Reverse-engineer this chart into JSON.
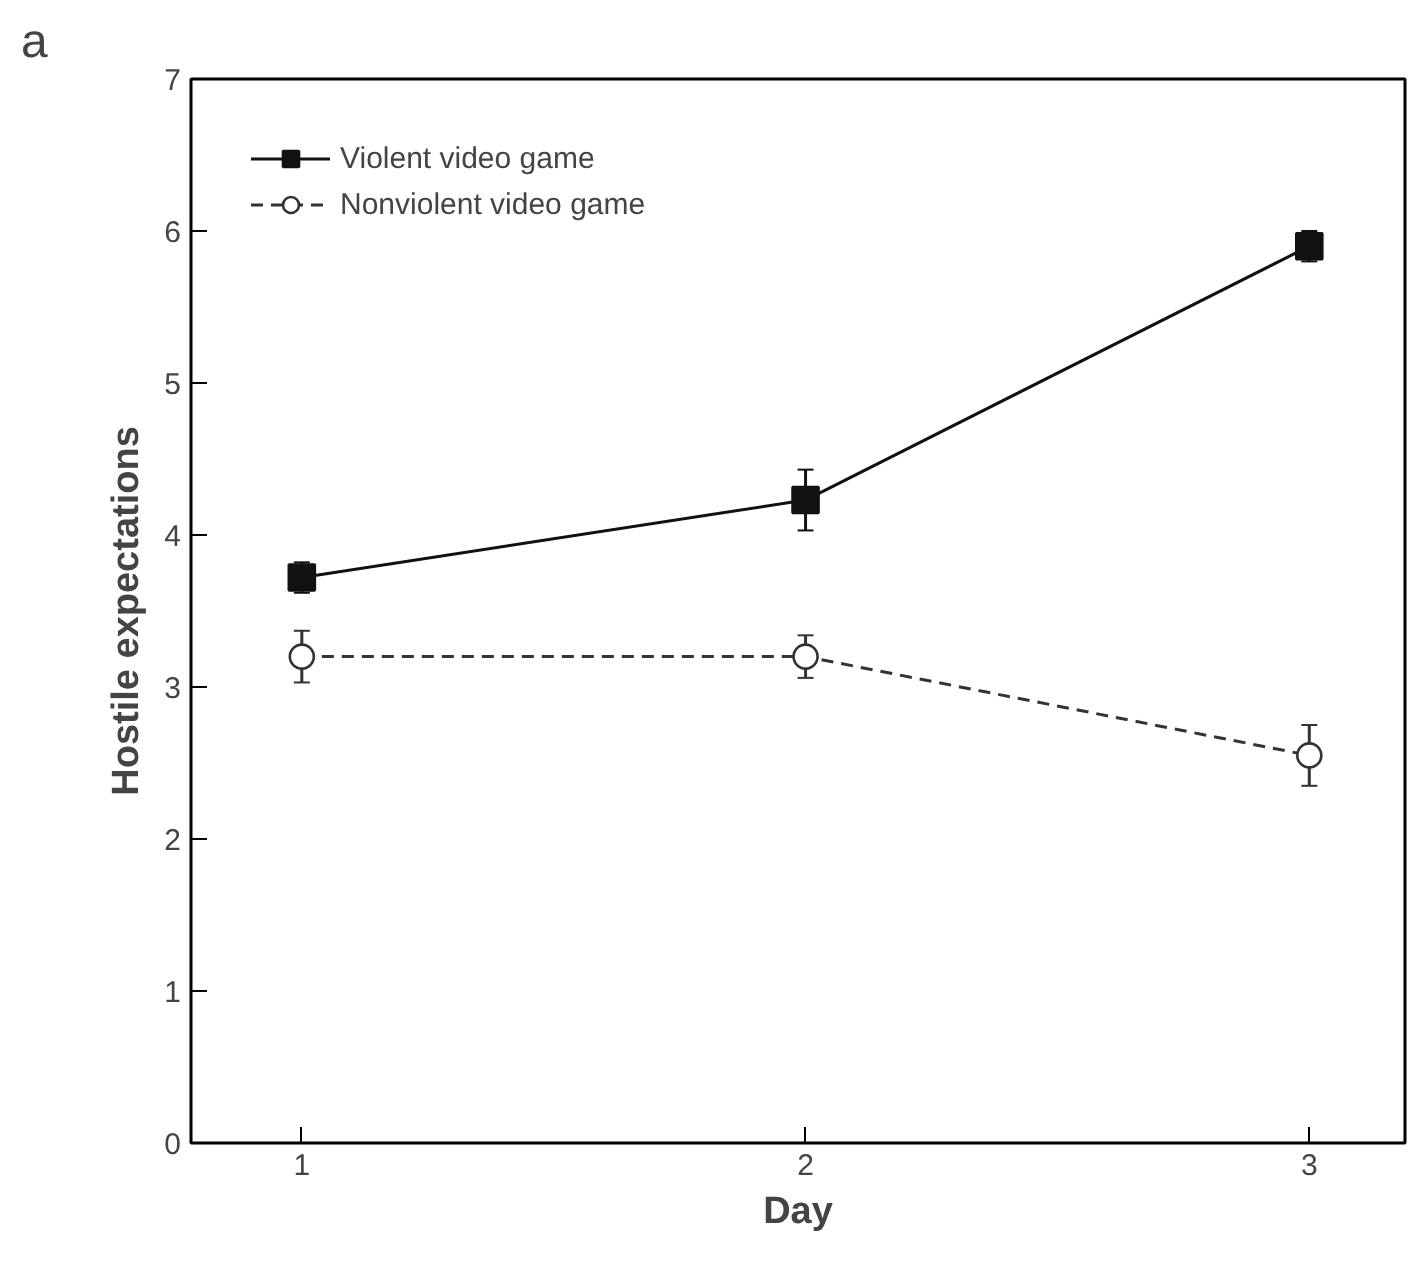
{
  "chart_data": {
    "type": "line",
    "xlabel": "Day",
    "ylabel": "Hostile expectations",
    "annotations": [
      "a"
    ],
    "x": [
      1,
      2,
      3
    ],
    "xlim": [
      0.78,
      3.19
    ],
    "xticks": [
      1,
      2,
      3
    ],
    "ylim": [
      0,
      7
    ],
    "yticks": [
      0,
      1,
      2,
      3,
      4,
      5,
      6,
      7
    ],
    "grid": false,
    "legend": "top left",
    "series": [
      {
        "name": "Violent video game",
        "color": "#111111",
        "values": [
          3.72,
          4.23,
          5.9
        ],
        "errors": [
          0.1,
          0.2,
          0.1
        ],
        "marker": "square",
        "line_style": "solid"
      },
      {
        "name": "Nonviolent video game",
        "color": "#333333",
        "values": [
          3.2,
          3.2,
          2.55
        ],
        "errors": [
          0.17,
          0.14,
          0.2
        ],
        "marker": "circle",
        "line_style": "dashed"
      }
    ]
  }
}
